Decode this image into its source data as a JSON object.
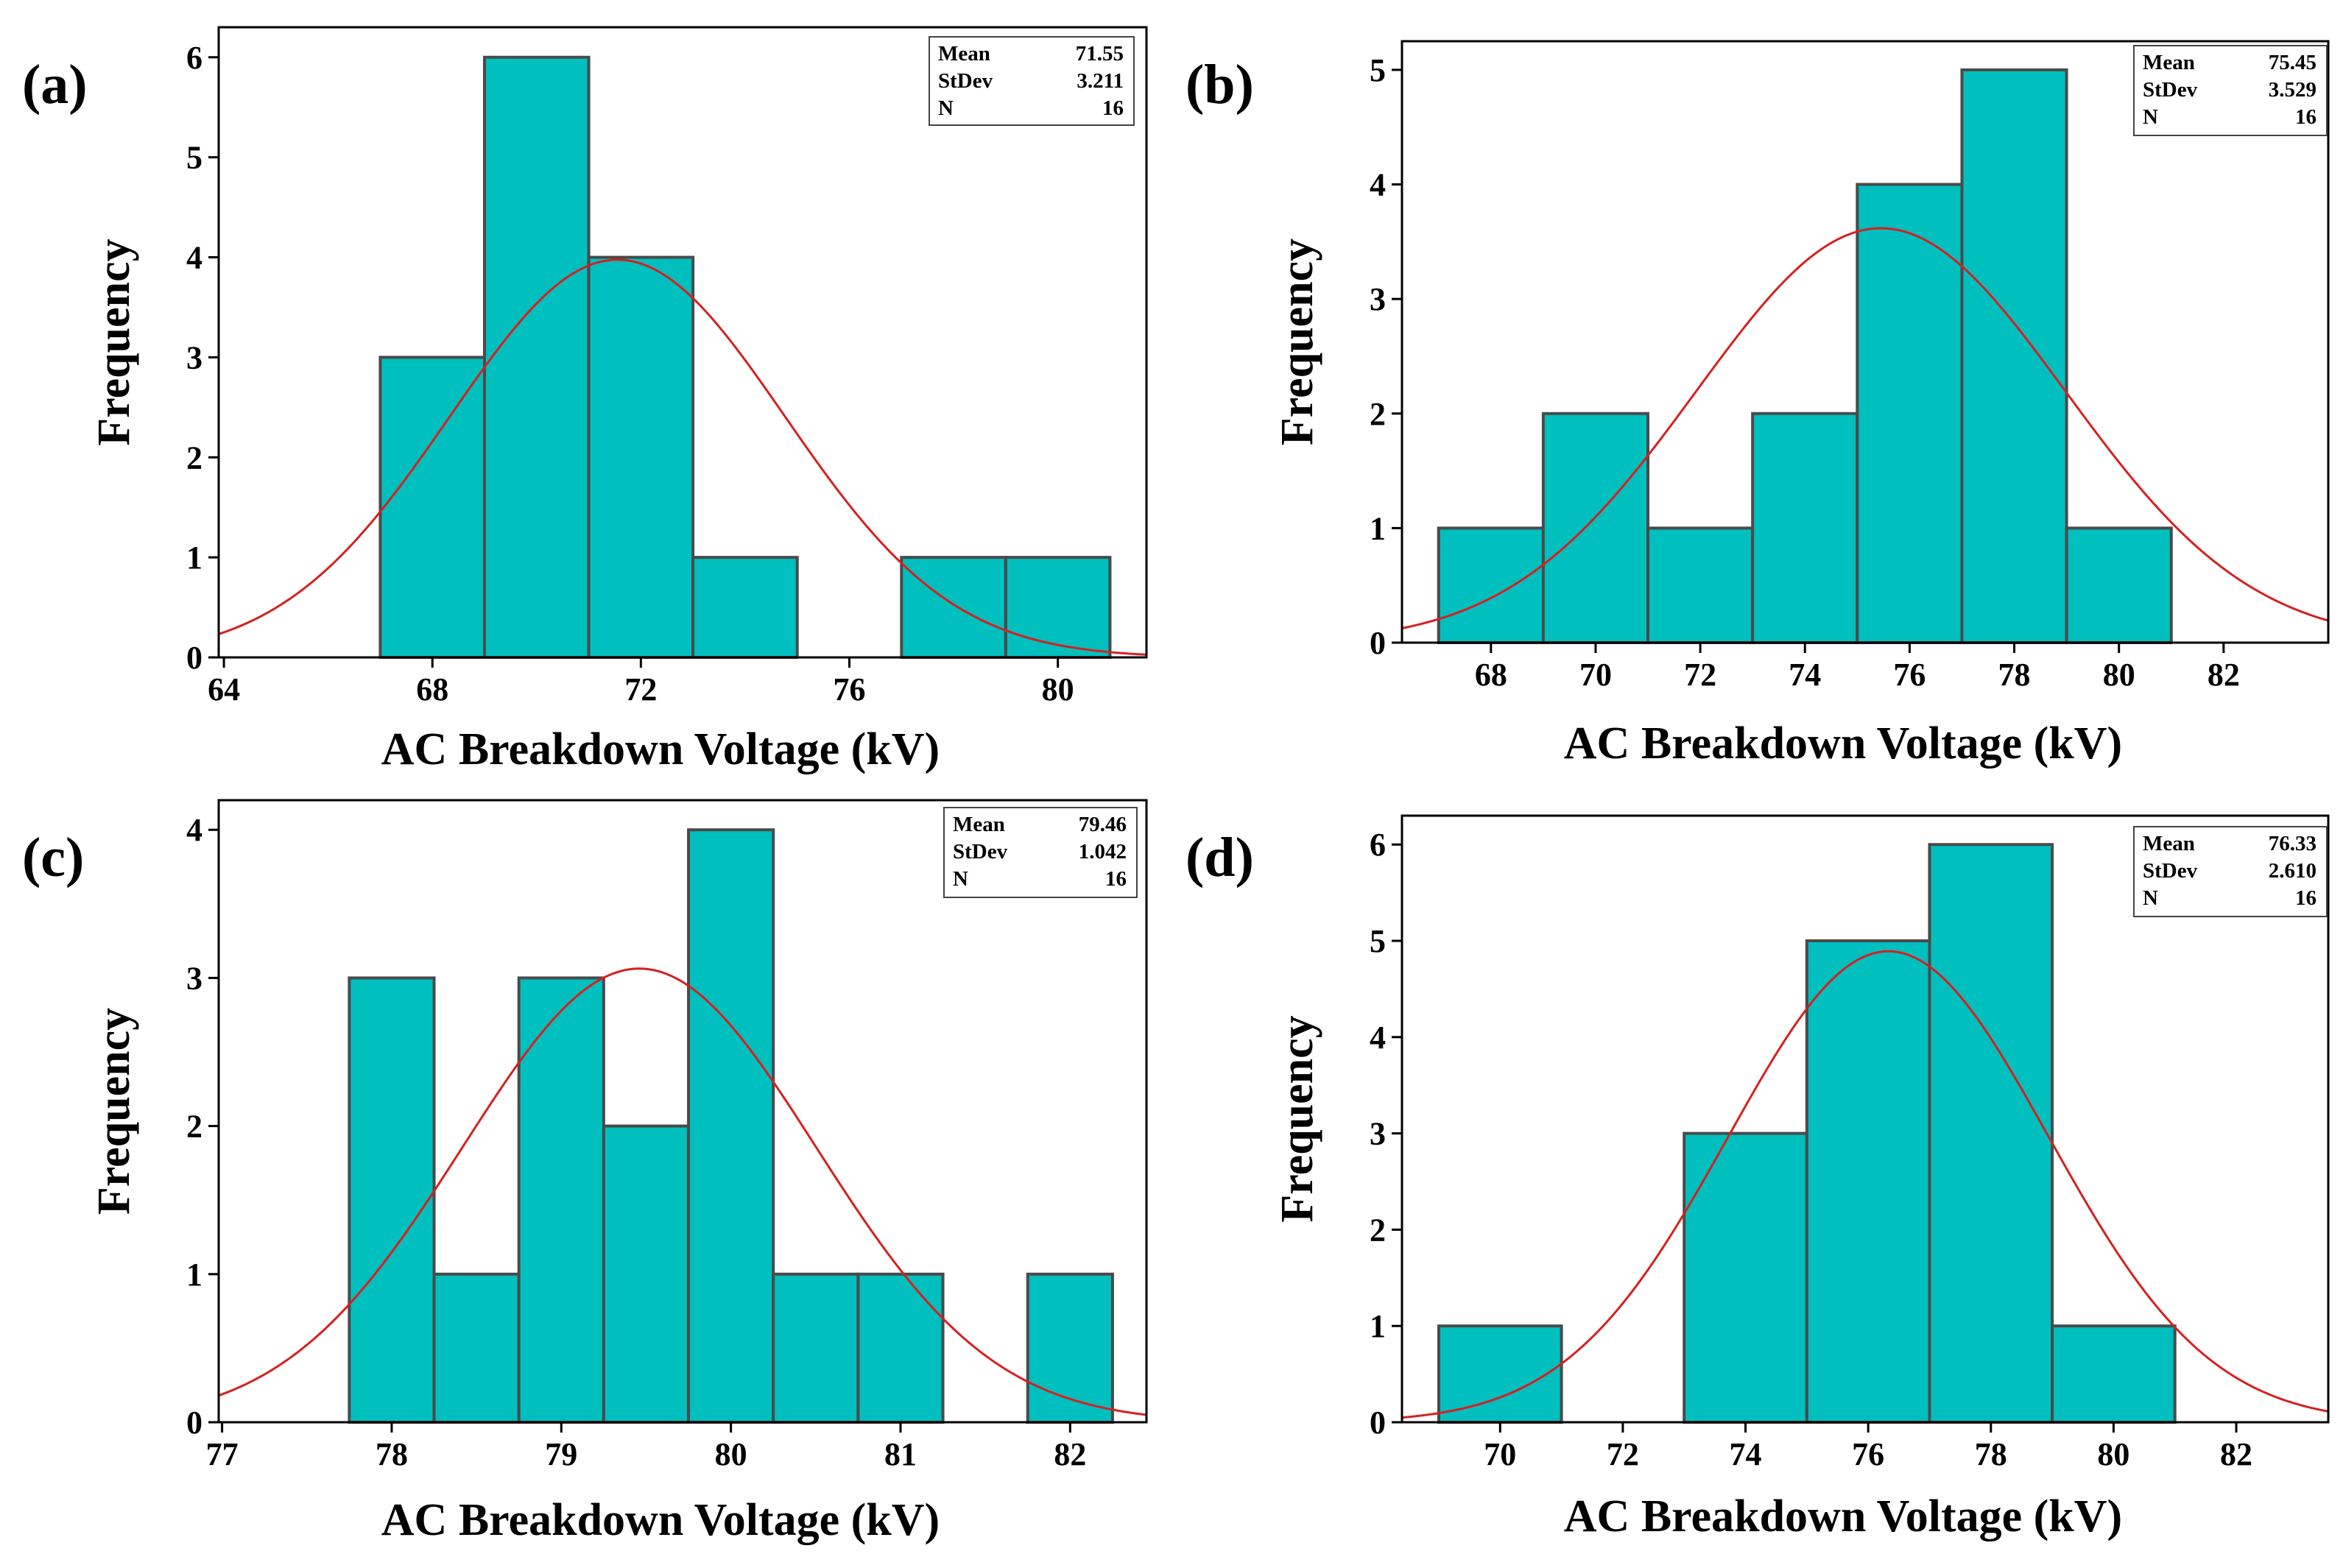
{
  "figure_title": "",
  "chart_data": [
    {
      "type": "bar",
      "panel": "(a)",
      "title": "",
      "xlabel": "AC Breakdown Voltage (kV)",
      "ylabel": "Frequency",
      "bin_width": 2,
      "bins": [
        {
          "start": 67,
          "end": 69,
          "value": 3
        },
        {
          "start": 69,
          "end": 71,
          "value": 6
        },
        {
          "start": 71,
          "end": 73,
          "value": 4
        },
        {
          "start": 73,
          "end": 75,
          "value": 1
        },
        {
          "start": 77,
          "end": 79,
          "value": 1
        },
        {
          "start": 79,
          "end": 81,
          "value": 1
        }
      ],
      "xlim": [
        63.9,
        81.7
      ],
      "ylim": [
        0,
        6.3
      ],
      "xticks": [
        64,
        68,
        72,
        76,
        80
      ],
      "xtick_labels": [
        "64",
        "68",
        "72",
        "76",
        "80"
      ],
      "yticks": [
        0,
        1,
        2,
        3,
        4,
        5,
        6
      ],
      "ytick_labels": [
        "0",
        "1",
        "2",
        "3",
        "4",
        "5",
        "6"
      ],
      "fit": {
        "type": "normal",
        "mean": 71.55,
        "stdev": 3.211,
        "n": 16
      },
      "legend": {
        "position": "top-right",
        "rows": [
          {
            "label": "Mean",
            "value": "71.55"
          },
          {
            "label": "StDev",
            "value": "3.211"
          },
          {
            "label": "N",
            "value": "16"
          }
        ]
      }
    },
    {
      "type": "bar",
      "panel": "(b)",
      "title": "",
      "xlabel": "AC Breakdown Voltage (kV)",
      "ylabel": "Frequency",
      "bin_width": 2,
      "bins": [
        {
          "start": 67,
          "end": 69,
          "value": 1
        },
        {
          "start": 69,
          "end": 71,
          "value": 2
        },
        {
          "start": 71,
          "end": 73,
          "value": 1
        },
        {
          "start": 73,
          "end": 75,
          "value": 2
        },
        {
          "start": 75,
          "end": 77,
          "value": 4
        },
        {
          "start": 77,
          "end": 79,
          "value": 5
        },
        {
          "start": 79,
          "end": 81,
          "value": 1
        }
      ],
      "xlim": [
        66.3,
        84.0
      ],
      "ylim": [
        0,
        5.25
      ],
      "xticks": [
        68,
        70,
        72,
        74,
        76,
        78,
        80,
        82
      ],
      "xtick_labels": [
        "68",
        "70",
        "72",
        "74",
        "76",
        "78",
        "80",
        "82"
      ],
      "yticks": [
        0,
        1,
        2,
        3,
        4,
        5
      ],
      "ytick_labels": [
        "0",
        "1",
        "2",
        "3",
        "4",
        "5"
      ],
      "fit": {
        "type": "normal",
        "mean": 75.45,
        "stdev": 3.529,
        "n": 16
      },
      "legend": {
        "position": "top-right",
        "rows": [
          {
            "label": "Mean",
            "value": "75.45"
          },
          {
            "label": "StDev",
            "value": "3.529"
          },
          {
            "label": "N",
            "value": "16"
          }
        ]
      }
    },
    {
      "type": "bar",
      "panel": "(c)",
      "title": "",
      "xlabel": "AC Breakdown Voltage (kV)",
      "ylabel": "Frequency",
      "bin_width": 0.5,
      "bins": [
        {
          "start": 77.75,
          "end": 78.25,
          "value": 3
        },
        {
          "start": 78.25,
          "end": 78.75,
          "value": 1
        },
        {
          "start": 78.75,
          "end": 79.25,
          "value": 3
        },
        {
          "start": 79.25,
          "end": 79.75,
          "value": 2
        },
        {
          "start": 79.75,
          "end": 80.25,
          "value": 4
        },
        {
          "start": 80.25,
          "end": 80.75,
          "value": 1
        },
        {
          "start": 80.75,
          "end": 81.25,
          "value": 1
        },
        {
          "start": 81.75,
          "end": 82.25,
          "value": 1
        }
      ],
      "xlim": [
        76.98,
        82.45
      ],
      "ylim": [
        0,
        4.2
      ],
      "xticks": [
        77,
        78,
        79,
        80,
        81,
        82
      ],
      "xtick_labels": [
        "77",
        "78",
        "79",
        "80",
        "81",
        "82"
      ],
      "yticks": [
        0,
        1,
        2,
        3,
        4
      ],
      "ytick_labels": [
        "0",
        "1",
        "2",
        "3",
        "4"
      ],
      "fit": {
        "type": "normal",
        "mean": 79.46,
        "stdev": 1.042,
        "n": 16
      },
      "legend": {
        "position": "top-right",
        "rows": [
          {
            "label": "Mean",
            "value": "79.46"
          },
          {
            "label": "StDev",
            "value": "1.042"
          },
          {
            "label": "N",
            "value": "16"
          }
        ]
      }
    },
    {
      "type": "bar",
      "panel": "(d)",
      "title": "",
      "xlabel": "AC Breakdown Voltage (kV)",
      "ylabel": "Frequency",
      "bin_width": 2,
      "bins": [
        {
          "start": 69,
          "end": 71,
          "value": 1
        },
        {
          "start": 73,
          "end": 75,
          "value": 3
        },
        {
          "start": 75,
          "end": 77,
          "value": 5
        },
        {
          "start": 77,
          "end": 79,
          "value": 6
        },
        {
          "start": 79,
          "end": 81,
          "value": 1
        }
      ],
      "xlim": [
        68.4,
        83.5
      ],
      "ylim": [
        0,
        6.3
      ],
      "xticks": [
        70,
        72,
        74,
        76,
        78,
        80,
        82
      ],
      "xtick_labels": [
        "70",
        "72",
        "74",
        "76",
        "78",
        "80",
        "82"
      ],
      "yticks": [
        0,
        1,
        2,
        3,
        4,
        5,
        6
      ],
      "ytick_labels": [
        "0",
        "1",
        "2",
        "3",
        "4",
        "5",
        "6"
      ],
      "fit": {
        "type": "normal",
        "mean": 76.33,
        "stdev": 2.61,
        "n": 16
      },
      "legend": {
        "position": "top-right",
        "rows": [
          {
            "label": "Mean",
            "value": "76.33"
          },
          {
            "label": "StDev",
            "value": "2.610"
          },
          {
            "label": "N",
            "value": "16"
          }
        ]
      }
    }
  ]
}
